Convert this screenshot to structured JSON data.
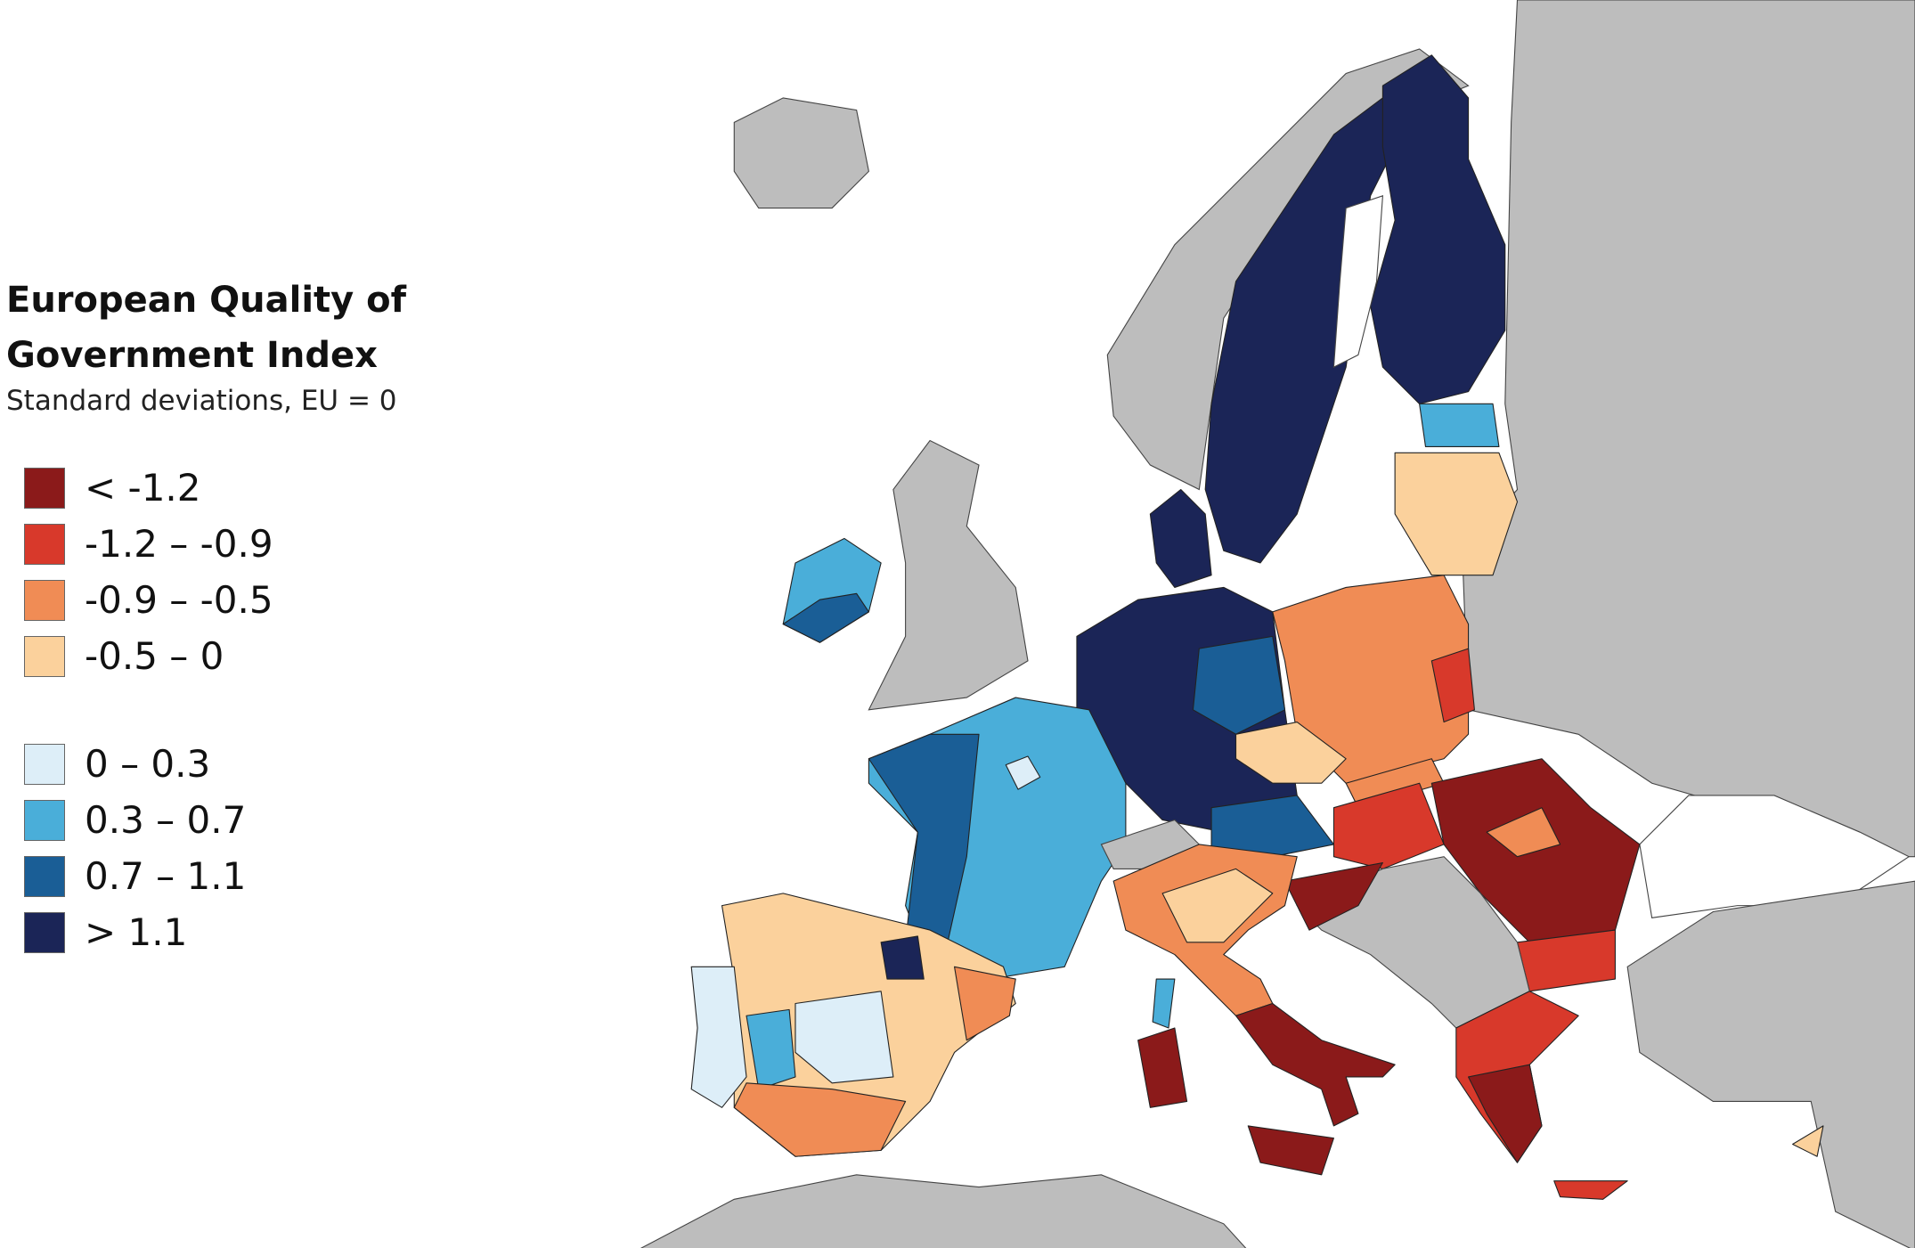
{
  "legend": {
    "title": "European Quality of Government Index",
    "subtitle": "Standard deviations, EU = 0",
    "items": [
      {
        "label": "< -1.2",
        "color": "#8b1a1a"
      },
      {
        "label": "-1.2 – -0.9",
        "color": "#d8392b"
      },
      {
        "label": "-0.9 – -0.5",
        "color": "#f08c55"
      },
      {
        "label": "-0.5 – 0",
        "color": "#fbd19c"
      },
      {
        "label": "0 – 0.3",
        "color": "#ddeef8"
      },
      {
        "label": "0.3 – 0.7",
        "color": "#4aaed9"
      },
      {
        "label": "0.7 – 1.1",
        "color": "#1a5e96"
      },
      {
        "label": "> 1.1",
        "color": "#1b2557"
      }
    ]
  }
}
